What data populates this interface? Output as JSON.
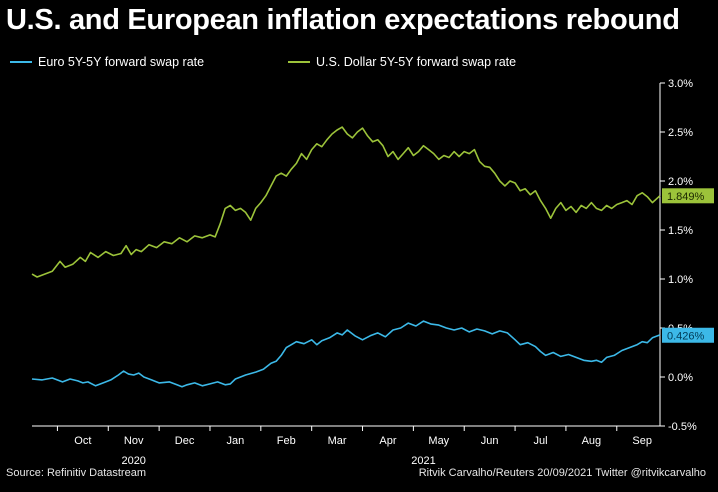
{
  "title": "U.S. and European inflation expectations rebound",
  "source": "Source: Refinitiv Datastream",
  "credit": "Ritvik Carvalho/Reuters 20/09/2021 Twitter @ritvikcarvalho",
  "colors": {
    "euro": "#3cb9e8",
    "usd": "#9cc33a",
    "background": "#000000"
  },
  "chart_data": {
    "type": "line",
    "title": "U.S. and European inflation expectations rebound",
    "xlabel": "",
    "ylabel": "",
    "ylim": [
      -0.5,
      3.0
    ],
    "y_ticks": [
      "3.0%",
      "2.5%",
      "2.0%",
      "1.5%",
      "1.0%",
      "0.5%",
      "0.0%",
      "-0.5%"
    ],
    "y_tick_values": [
      3.0,
      2.5,
      2.0,
      1.5,
      1.0,
      0.5,
      0.0,
      -0.5
    ],
    "x_range": [
      0,
      12.35
    ],
    "x_ticks": [
      "Oct",
      "Nov",
      "Dec",
      "Jan",
      "Feb",
      "Mar",
      "Apr",
      "May",
      "Jun",
      "Jul",
      "Aug",
      "Sep"
    ],
    "x_tick_positions": [
      1,
      2,
      3,
      4,
      5,
      6,
      7,
      8,
      9,
      10,
      11,
      12
    ],
    "year_labels": [
      {
        "label": "2020",
        "at": 2.0
      },
      {
        "label": "2021",
        "at": 7.7
      }
    ],
    "grid": false,
    "legend_position": "top-left",
    "series": [
      {
        "name": "Euro 5Y-5Y forward swap rate",
        "end_label": "0.426%",
        "end_value": 0.426,
        "points": [
          [
            0.0,
            -0.02
          ],
          [
            0.2,
            -0.03
          ],
          [
            0.4,
            -0.01
          ],
          [
            0.6,
            -0.05
          ],
          [
            0.75,
            -0.02
          ],
          [
            0.9,
            -0.04
          ],
          [
            1.0,
            -0.06
          ],
          [
            1.1,
            -0.05
          ],
          [
            1.25,
            -0.09
          ],
          [
            1.4,
            -0.06
          ],
          [
            1.55,
            -0.03
          ],
          [
            1.7,
            0.02
          ],
          [
            1.8,
            0.06
          ],
          [
            1.9,
            0.03
          ],
          [
            2.0,
            0.02
          ],
          [
            2.1,
            0.04
          ],
          [
            2.2,
            0.0
          ],
          [
            2.35,
            -0.03
          ],
          [
            2.5,
            -0.06
          ],
          [
            2.7,
            -0.05
          ],
          [
            2.85,
            -0.08
          ],
          [
            2.95,
            -0.1
          ],
          [
            3.05,
            -0.08
          ],
          [
            3.2,
            -0.06
          ],
          [
            3.35,
            -0.09
          ],
          [
            3.5,
            -0.07
          ],
          [
            3.65,
            -0.05
          ],
          [
            3.8,
            -0.08
          ],
          [
            3.9,
            -0.07
          ],
          [
            4.0,
            -0.02
          ],
          [
            4.2,
            0.02
          ],
          [
            4.4,
            0.05
          ],
          [
            4.55,
            0.08
          ],
          [
            4.7,
            0.14
          ],
          [
            4.8,
            0.16
          ],
          [
            4.9,
            0.22
          ],
          [
            5.0,
            0.3
          ],
          [
            5.1,
            0.33
          ],
          [
            5.2,
            0.36
          ],
          [
            5.35,
            0.34
          ],
          [
            5.5,
            0.38
          ],
          [
            5.6,
            0.33
          ],
          [
            5.7,
            0.37
          ],
          [
            5.85,
            0.4
          ],
          [
            6.0,
            0.45
          ],
          [
            6.1,
            0.43
          ],
          [
            6.2,
            0.48
          ],
          [
            6.35,
            0.42
          ],
          [
            6.5,
            0.38
          ],
          [
            6.65,
            0.42
          ],
          [
            6.8,
            0.45
          ],
          [
            6.95,
            0.41
          ],
          [
            7.1,
            0.48
          ],
          [
            7.25,
            0.5
          ],
          [
            7.4,
            0.55
          ],
          [
            7.55,
            0.52
          ],
          [
            7.7,
            0.57
          ],
          [
            7.85,
            0.54
          ],
          [
            8.0,
            0.53
          ],
          [
            8.15,
            0.5
          ],
          [
            8.3,
            0.48
          ],
          [
            8.45,
            0.5
          ],
          [
            8.6,
            0.46
          ],
          [
            8.75,
            0.49
          ],
          [
            8.9,
            0.47
          ],
          [
            9.05,
            0.44
          ],
          [
            9.2,
            0.47
          ],
          [
            9.35,
            0.45
          ],
          [
            9.5,
            0.38
          ],
          [
            9.6,
            0.33
          ],
          [
            9.75,
            0.35
          ],
          [
            9.9,
            0.31
          ],
          [
            10.0,
            0.26
          ],
          [
            10.1,
            0.22
          ],
          [
            10.25,
            0.25
          ],
          [
            10.4,
            0.21
          ],
          [
            10.55,
            0.23
          ],
          [
            10.7,
            0.2
          ],
          [
            10.85,
            0.17
          ],
          [
            11.0,
            0.16
          ],
          [
            11.1,
            0.17
          ],
          [
            11.2,
            0.15
          ],
          [
            11.3,
            0.2
          ],
          [
            11.45,
            0.22
          ],
          [
            11.6,
            0.27
          ],
          [
            11.75,
            0.3
          ],
          [
            11.9,
            0.33
          ],
          [
            12.0,
            0.36
          ],
          [
            12.1,
            0.35
          ],
          [
            12.2,
            0.4
          ],
          [
            12.35,
            0.43
          ]
        ]
      },
      {
        "name": "U.S. Dollar 5Y-5Y forward swap rate",
        "end_label": "1.849%",
        "end_value": 1.849,
        "points": [
          [
            0.0,
            1.05
          ],
          [
            0.1,
            1.02
          ],
          [
            0.25,
            1.05
          ],
          [
            0.4,
            1.08
          ],
          [
            0.55,
            1.18
          ],
          [
            0.65,
            1.12
          ],
          [
            0.8,
            1.15
          ],
          [
            0.95,
            1.22
          ],
          [
            1.05,
            1.18
          ],
          [
            1.15,
            1.27
          ],
          [
            1.3,
            1.22
          ],
          [
            1.45,
            1.28
          ],
          [
            1.6,
            1.24
          ],
          [
            1.75,
            1.26
          ],
          [
            1.85,
            1.34
          ],
          [
            1.95,
            1.25
          ],
          [
            2.05,
            1.3
          ],
          [
            2.15,
            1.28
          ],
          [
            2.3,
            1.35
          ],
          [
            2.45,
            1.32
          ],
          [
            2.6,
            1.38
          ],
          [
            2.75,
            1.36
          ],
          [
            2.9,
            1.42
          ],
          [
            3.05,
            1.38
          ],
          [
            3.2,
            1.44
          ],
          [
            3.35,
            1.42
          ],
          [
            3.5,
            1.45
          ],
          [
            3.6,
            1.43
          ],
          [
            3.7,
            1.56
          ],
          [
            3.8,
            1.72
          ],
          [
            3.9,
            1.75
          ],
          [
            4.0,
            1.7
          ],
          [
            4.1,
            1.72
          ],
          [
            4.2,
            1.68
          ],
          [
            4.3,
            1.6
          ],
          [
            4.4,
            1.72
          ],
          [
            4.5,
            1.78
          ],
          [
            4.6,
            1.85
          ],
          [
            4.7,
            1.95
          ],
          [
            4.8,
            2.05
          ],
          [
            4.9,
            2.08
          ],
          [
            5.0,
            2.05
          ],
          [
            5.1,
            2.12
          ],
          [
            5.2,
            2.18
          ],
          [
            5.3,
            2.28
          ],
          [
            5.4,
            2.22
          ],
          [
            5.5,
            2.32
          ],
          [
            5.6,
            2.38
          ],
          [
            5.7,
            2.35
          ],
          [
            5.8,
            2.42
          ],
          [
            5.9,
            2.48
          ],
          [
            6.0,
            2.52
          ],
          [
            6.1,
            2.55
          ],
          [
            6.2,
            2.48
          ],
          [
            6.3,
            2.44
          ],
          [
            6.4,
            2.5
          ],
          [
            6.5,
            2.54
          ],
          [
            6.6,
            2.46
          ],
          [
            6.7,
            2.4
          ],
          [
            6.8,
            2.42
          ],
          [
            6.9,
            2.36
          ],
          [
            7.0,
            2.25
          ],
          [
            7.1,
            2.3
          ],
          [
            7.2,
            2.22
          ],
          [
            7.3,
            2.28
          ],
          [
            7.4,
            2.34
          ],
          [
            7.5,
            2.26
          ],
          [
            7.6,
            2.3
          ],
          [
            7.7,
            2.36
          ],
          [
            7.8,
            2.32
          ],
          [
            7.9,
            2.28
          ],
          [
            8.0,
            2.22
          ],
          [
            8.1,
            2.26
          ],
          [
            8.2,
            2.24
          ],
          [
            8.3,
            2.3
          ],
          [
            8.4,
            2.25
          ],
          [
            8.5,
            2.3
          ],
          [
            8.6,
            2.28
          ],
          [
            8.7,
            2.32
          ],
          [
            8.8,
            2.2
          ],
          [
            8.9,
            2.15
          ],
          [
            9.0,
            2.14
          ],
          [
            9.1,
            2.08
          ],
          [
            9.2,
            2.0
          ],
          [
            9.3,
            1.95
          ],
          [
            9.4,
            2.0
          ],
          [
            9.5,
            1.98
          ],
          [
            9.6,
            1.9
          ],
          [
            9.7,
            1.92
          ],
          [
            9.8,
            1.86
          ],
          [
            9.9,
            1.9
          ],
          [
            10.0,
            1.8
          ],
          [
            10.1,
            1.72
          ],
          [
            10.2,
            1.62
          ],
          [
            10.3,
            1.72
          ],
          [
            10.4,
            1.78
          ],
          [
            10.5,
            1.7
          ],
          [
            10.6,
            1.74
          ],
          [
            10.7,
            1.68
          ],
          [
            10.8,
            1.75
          ],
          [
            10.9,
            1.72
          ],
          [
            11.0,
            1.78
          ],
          [
            11.1,
            1.72
          ],
          [
            11.2,
            1.7
          ],
          [
            11.3,
            1.75
          ],
          [
            11.4,
            1.72
          ],
          [
            11.5,
            1.76
          ],
          [
            11.6,
            1.78
          ],
          [
            11.7,
            1.8
          ],
          [
            11.8,
            1.76
          ],
          [
            11.9,
            1.85
          ],
          [
            12.0,
            1.88
          ],
          [
            12.1,
            1.84
          ],
          [
            12.2,
            1.78
          ],
          [
            12.35,
            1.85
          ]
        ]
      }
    ]
  }
}
